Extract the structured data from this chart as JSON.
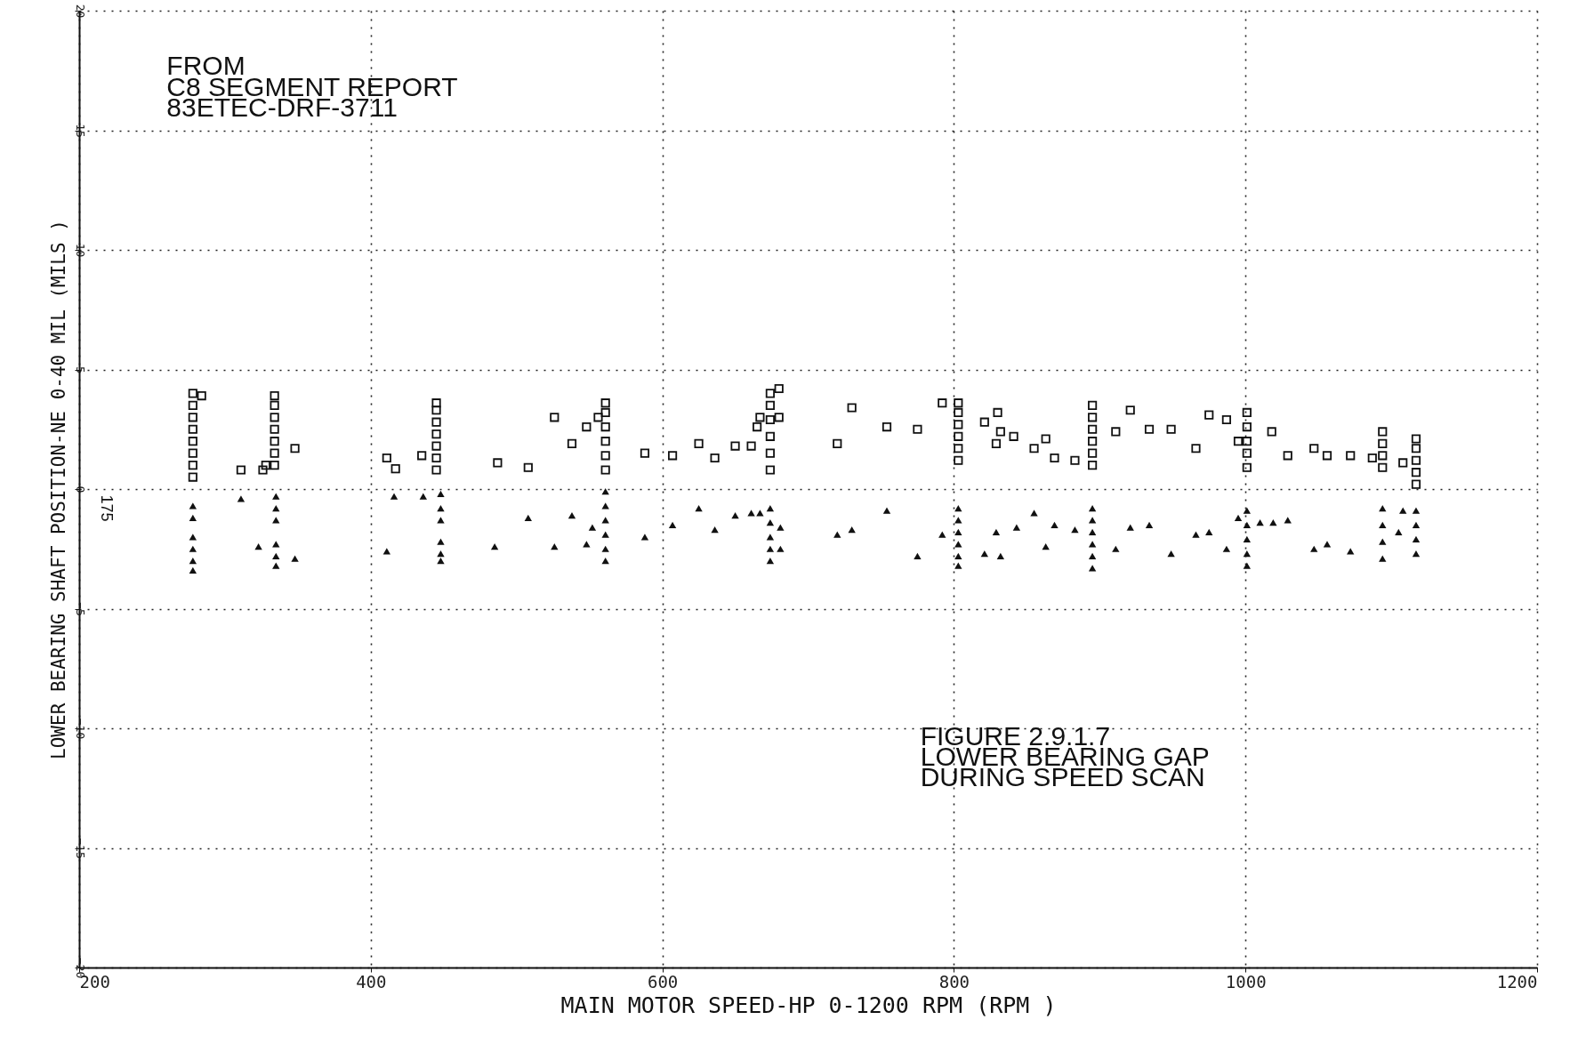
{
  "chart_data": {
    "type": "scatter",
    "xlabel": "MAIN MOTOR SPEED-HP    0-1200 RPM    (RPM    )",
    "ylabel": "LOWER BEARING SHAFT POSITION-NE 0-40 MIL    (MILS    )",
    "xlim": [
      200,
      1200
    ],
    "xticks": [
      200,
      400,
      600,
      800,
      1000,
      1200
    ],
    "ylim": [
      -20,
      20
    ],
    "yticks": [
      -20,
      -15,
      -10,
      -5,
      0,
      5,
      10,
      15,
      20
    ],
    "grid": true,
    "annotations": [
      "FROM\nC8 SEGMENT REPORT\n83ETEC-DRF-3711",
      "FIGURE 2.9.1.7\nLOWER BEARING GAP\nDURING SPEED SCAN",
      "175"
    ],
    "series": [
      {
        "color": "#111111",
        "marker": "square",
        "x": [
          278,
          278,
          278,
          278,
          278,
          278,
          278,
          278,
          284,
          311,
          326,
          328,
          334,
          334,
          334,
          334,
          334,
          334,
          334,
          348,
          411,
          417,
          435,
          445,
          445,
          445,
          445,
          445,
          445,
          445,
          487,
          508,
          526,
          538,
          548,
          556,
          561,
          561,
          561,
          561,
          561,
          561,
          588,
          607,
          625,
          636,
          650,
          661,
          665,
          667,
          674,
          674,
          674,
          674,
          674,
          674,
          680,
          680,
          720,
          730,
          754,
          775,
          792,
          803,
          803,
          803,
          803,
          803,
          803,
          821,
          829,
          830,
          832,
          841,
          855,
          863,
          869,
          883,
          895,
          895,
          895,
          895,
          895,
          895,
          911,
          921,
          934,
          949,
          966,
          975,
          987,
          995,
          1001,
          1001,
          1001,
          1001,
          1001,
          1018,
          1029,
          1047,
          1056,
          1072,
          1087,
          1094,
          1094,
          1094,
          1094,
          1108,
          1117,
          1117,
          1117,
          1117,
          1117
        ],
        "values": [
          0.5,
          1,
          1.5,
          2,
          2.5,
          3,
          3.5,
          4,
          3.9,
          0.8,
          0.8,
          1.0,
          1,
          1.5,
          2,
          2.5,
          3,
          3.5,
          3.9,
          1.7,
          1.3,
          0.85,
          1.4,
          0.8,
          1.3,
          1.8,
          2.3,
          2.8,
          3.3,
          3.6,
          1.1,
          0.9,
          3.0,
          1.9,
          2.6,
          3.0,
          0.8,
          1.4,
          2,
          2.6,
          3.2,
          3.6,
          1.5,
          1.4,
          1.9,
          1.3,
          1.8,
          1.8,
          2.6,
          3.0,
          0.8,
          1.5,
          2.2,
          2.9,
          3.5,
          4.0,
          4.2,
          3.0,
          1.9,
          3.4,
          2.6,
          2.5,
          3.6,
          1.2,
          1.7,
          2.2,
          2.7,
          3.2,
          3.6,
          2.8,
          1.9,
          3.2,
          2.4,
          2.2,
          1.7,
          2.1,
          1.3,
          1.2,
          1,
          1.5,
          2,
          2.5,
          3,
          3.5,
          2.4,
          3.3,
          2.5,
          2.5,
          1.7,
          3.1,
          2.9,
          2.0,
          0.9,
          1.5,
          2,
          2.6,
          3.2,
          2.4,
          1.4,
          1.7,
          1.4,
          1.4,
          1.3,
          0.9,
          1.4,
          1.9,
          2.4,
          1.1,
          0.2,
          0.7,
          1.2,
          1.7,
          2.1
        ]
      },
      {
        "color": "#111111",
        "marker": "triangle",
        "x": [
          278,
          278,
          278,
          278,
          278,
          278,
          311,
          323,
          335,
          335,
          335,
          335,
          335,
          335,
          348,
          411,
          416,
          436,
          448,
          448,
          448,
          448,
          448,
          448,
          485,
          508,
          526,
          538,
          548,
          552,
          561,
          561,
          561,
          561,
          561,
          561,
          588,
          607,
          625,
          636,
          650,
          661,
          667,
          674,
          674,
          674,
          674,
          674,
          681,
          681,
          720,
          730,
          754,
          775,
          792,
          803,
          803,
          803,
          803,
          803,
          803,
          821,
          829,
          832,
          843,
          855,
          863,
          869,
          883,
          895,
          895,
          895,
          895,
          895,
          895,
          911,
          921,
          934,
          949,
          966,
          975,
          987,
          995,
          1001,
          1001,
          1001,
          1001,
          1001,
          1010,
          1019,
          1029,
          1047,
          1056,
          1072,
          1094,
          1094,
          1094,
          1094,
          1105,
          1108,
          1117,
          1117,
          1117,
          1117
        ],
        "values": [
          -3.4,
          -3,
          -2.5,
          -2,
          -1.2,
          -0.7,
          -0.4,
          -2.4,
          -0.3,
          -0.8,
          -1.3,
          -2.3,
          -2.8,
          -3.2,
          -2.9,
          -2.6,
          -0.3,
          -0.3,
          -0.2,
          -0.8,
          -1.3,
          -2.2,
          -2.7,
          -3.0,
          -2.4,
          -1.2,
          -2.4,
          -1.1,
          -2.3,
          -1.6,
          -0.1,
          -0.7,
          -1.3,
          -1.9,
          -2.5,
          -3.0,
          -2.0,
          -1.5,
          -0.8,
          -1.7,
          -1.1,
          -1.0,
          -1.0,
          -0.8,
          -1.4,
          -2.0,
          -2.5,
          -3.0,
          -1.6,
          -2.5,
          -1.9,
          -1.7,
          -0.9,
          -2.8,
          -1.9,
          -0.8,
          -1.3,
          -1.8,
          -2.3,
          -2.8,
          -3.2,
          -2.7,
          -1.8,
          -2.8,
          -1.6,
          -1.0,
          -2.4,
          -1.5,
          -1.7,
          -0.8,
          -1.3,
          -1.8,
          -2.3,
          -2.8,
          -3.3,
          -2.5,
          -1.6,
          -1.5,
          -2.7,
          -1.9,
          -1.8,
          -2.5,
          -1.2,
          -0.9,
          -1.5,
          -2.1,
          -2.7,
          -3.2,
          -1.4,
          -1.4,
          -1.3,
          -2.5,
          -2.3,
          -2.6,
          -0.8,
          -1.5,
          -2.2,
          -2.9,
          -1.8,
          -0.9,
          -0.9,
          -1.5,
          -2.1,
          -2.7
        ]
      }
    ]
  }
}
